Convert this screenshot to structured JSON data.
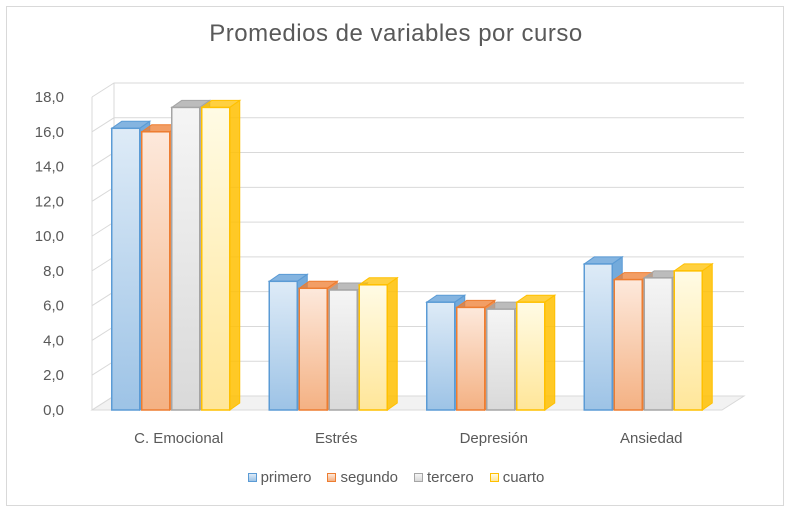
{
  "chart_data": {
    "type": "bar",
    "title": "Promedios de variables por curso",
    "categories": [
      "C. Emocional",
      "Estrés",
      "Depresión",
      "Ansiedad"
    ],
    "series": [
      {
        "name": "primero",
        "values": [
          16.2,
          7.4,
          6.2,
          8.4
        ],
        "color": "#5b9bd5",
        "fill_light": "#deebf7",
        "fill_dark": "#9dc3e6"
      },
      {
        "name": "segundo",
        "values": [
          16.0,
          7.0,
          5.9,
          7.5
        ],
        "color": "#ed7d31",
        "fill_light": "#fde9dc",
        "fill_dark": "#f4b183"
      },
      {
        "name": "tercero",
        "values": [
          17.4,
          6.9,
          5.8,
          7.6
        ],
        "color": "#a5a5a5",
        "fill_light": "#f5f5f5",
        "fill_dark": "#d9d9d9"
      },
      {
        "name": "cuarto",
        "values": [
          17.4,
          7.2,
          6.2,
          8.0
        ],
        "color": "#ffc000",
        "fill_light": "#fffbe5",
        "fill_dark": "#ffe699"
      }
    ],
    "ylim": [
      0,
      18
    ],
    "yticks": [
      "0,0",
      "2,0",
      "4,0",
      "6,0",
      "8,0",
      "10,0",
      "12,0",
      "14,0",
      "16,0",
      "18,0"
    ],
    "grid": true,
    "legend_position": "bottom",
    "style": "3d-clustered-column"
  }
}
